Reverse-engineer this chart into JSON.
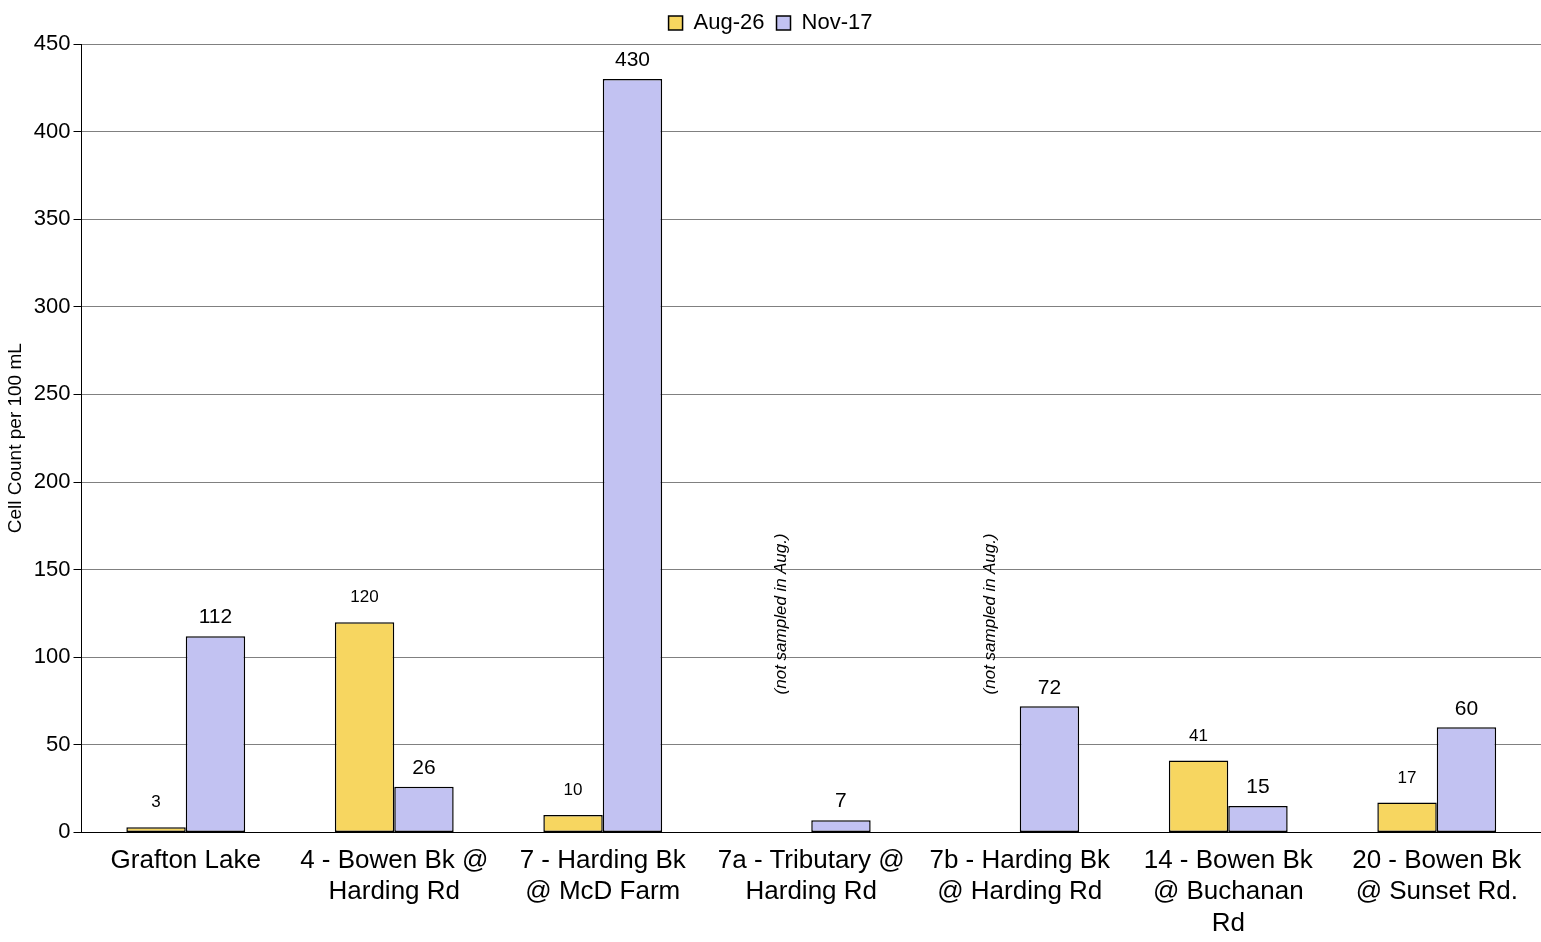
{
  "chart_data": {
    "type": "bar",
    "ylabel": "Cell Count per 100 mL",
    "categories": [
      "Grafton Lake",
      "4 - Bowen Bk @ Harding Rd",
      "7 - Harding Bk @ McD Farm",
      "7a - Tributary @ Harding Rd",
      "7b - Harding Bk @ Harding Rd",
      "14 - Bowen Bk @ Buchanan Rd",
      "20 - Bowen Bk @ Sunset Rd."
    ],
    "series": [
      {
        "name": "Aug-26",
        "color": "#f7d660",
        "values": [
          3,
          120,
          10,
          null,
          null,
          41,
          17
        ]
      },
      {
        "name": "Nov-17",
        "color": "#c2c2f2",
        "values": [
          112,
          26,
          430,
          7,
          72,
          15,
          60
        ]
      }
    ],
    "ylim": [
      0,
      450
    ],
    "yticks": [
      0,
      50,
      100,
      150,
      200,
      250,
      300,
      350,
      400,
      450
    ],
    "grid": "y",
    "legend": "top",
    "data_labels": true,
    "annotations": [
      "(not sampled in Aug.)",
      "(not sampled in Aug.)"
    ]
  }
}
